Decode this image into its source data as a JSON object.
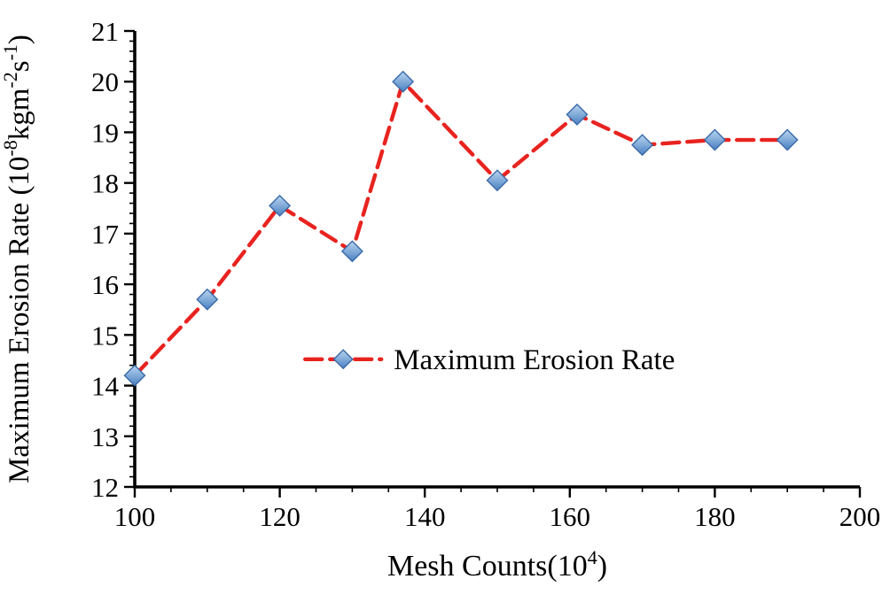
{
  "chart_data": {
    "type": "line",
    "title": "",
    "xlabel": "Mesh Counts(10^4)",
    "ylabel": "Maximum Erosion Rate (10^-8 kgm^-2 s^-1)",
    "xlabel_parts": [
      {
        "t": "Mesh Counts(10",
        "sup": false
      },
      {
        "t": "4",
        "sup": true
      },
      {
        "t": ")",
        "sup": false
      }
    ],
    "ylabel_parts": [
      {
        "t": "Maximum Erosion Rate (10",
        "sup": false
      },
      {
        "t": "-8",
        "sup": true
      },
      {
        "t": "kgm",
        "sup": false
      },
      {
        "t": "-2",
        "sup": true
      },
      {
        "t": "s",
        "sup": false
      },
      {
        "t": "-1",
        "sup": true
      },
      {
        "t": ")",
        "sup": false
      }
    ],
    "x": [
      100,
      110,
      120,
      130,
      137,
      150,
      161,
      170,
      180,
      190
    ],
    "series": [
      {
        "name": "Maximum Erosion Rate",
        "values": [
          14.2,
          15.7,
          17.55,
          16.65,
          20.0,
          18.05,
          19.35,
          18.75,
          18.85,
          18.85
        ]
      }
    ],
    "xlim": [
      100,
      200
    ],
    "ylim": [
      12,
      21
    ],
    "x_ticks": [
      100,
      120,
      140,
      160,
      180,
      200
    ],
    "y_ticks": [
      12,
      13,
      14,
      15,
      16,
      17,
      18,
      19,
      20,
      21
    ],
    "x_minor_step": 5,
    "y_minor_step": 0.2,
    "legend": {
      "label": "Maximum Erosion Rate",
      "position": "inside-center"
    },
    "grid": false,
    "line_color": "#e8231f",
    "marker_fill_top": "#b9d5ef",
    "marker_fill_bottom": "#4a80c2",
    "marker_edge": "#3a6aa8",
    "axis_color": "#000000"
  }
}
